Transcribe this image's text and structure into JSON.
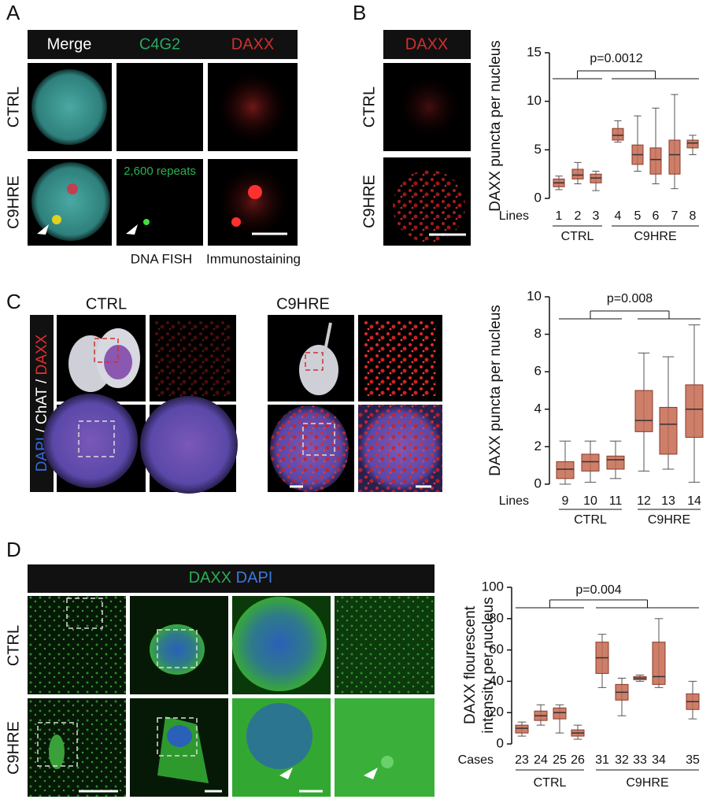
{
  "figure": {
    "panels": [
      "A",
      "B",
      "C",
      "D"
    ],
    "a": {
      "headers": [
        "Merge",
        "C4G2",
        "DAXX"
      ],
      "rows": [
        "CTRL",
        "C9HRE"
      ],
      "annotation": "2,600 repeats",
      "captions": [
        "DNA FISH",
        "Immunostaining"
      ]
    },
    "b": {
      "header": "DAXX",
      "rows": [
        "CTRL",
        "C9HRE"
      ]
    },
    "c": {
      "titles": [
        "CTRL",
        "C9HRE"
      ],
      "stain": [
        "DAPI",
        "/ ChAT /",
        "DAXX"
      ]
    },
    "d": {
      "header": [
        "DAXX",
        "DAPI"
      ],
      "rows": [
        "CTRL",
        "C9HRE"
      ]
    }
  },
  "chart_data": [
    {
      "type": "box",
      "ylabel": "DAXX puncta per nucleus",
      "xlabel": "Lines",
      "categories": [
        "1",
        "2",
        "3",
        "4",
        "5",
        "6",
        "7",
        "8"
      ],
      "groups": [
        "CTRL",
        "C9HRE"
      ],
      "annotation": "p=0.0012",
      "ylim": [
        0,
        15
      ],
      "yticks": [
        0,
        5,
        10,
        15
      ],
      "color": "#c46850",
      "boxes": [
        {
          "min": 0.9,
          "q1": 1.2,
          "median": 1.6,
          "q3": 2,
          "max": 2.3
        },
        {
          "min": 1.5,
          "q1": 2,
          "median": 2.4,
          "q3": 3,
          "max": 3.7
        },
        {
          "min": 0.8,
          "q1": 1.6,
          "median": 2.1,
          "q3": 2.5,
          "max": 2.8
        },
        {
          "min": 5.8,
          "q1": 6,
          "median": 6.5,
          "q3": 7.2,
          "max": 8
        },
        {
          "min": 2.8,
          "q1": 3.5,
          "median": 4.5,
          "q3": 5.5,
          "max": 8.5
        },
        {
          "min": 1.5,
          "q1": 2.5,
          "median": 4,
          "q3": 5.2,
          "max": 9.3
        },
        {
          "min": 1,
          "q1": 2.5,
          "median": 4.5,
          "q3": 6,
          "max": 10.7
        },
        {
          "min": 4.5,
          "q1": 5.2,
          "median": 5.7,
          "q3": 6,
          "max": 6.5
        }
      ]
    },
    {
      "type": "box",
      "ylabel": "DAXX puncta per nucleus",
      "xlabel": "Lines",
      "categories": [
        "9",
        "10",
        "11",
        "12",
        "13",
        "14"
      ],
      "groups": [
        "CTRL",
        "C9HRE"
      ],
      "annotation": "p=0.008",
      "ylim": [
        0,
        10
      ],
      "yticks": [
        0,
        2,
        4,
        6,
        8,
        10
      ],
      "color": "#c46850",
      "boxes": [
        {
          "min": 0,
          "q1": 0.3,
          "median": 0.8,
          "q3": 1.2,
          "max": 2.3
        },
        {
          "min": 0.1,
          "q1": 0.7,
          "median": 1.2,
          "q3": 1.6,
          "max": 2.3
        },
        {
          "min": 0.3,
          "q1": 0.8,
          "median": 1.3,
          "q3": 1.5,
          "max": 2.3
        },
        {
          "min": 0.7,
          "q1": 2.8,
          "median": 3.4,
          "q3": 5,
          "max": 7
        },
        {
          "min": 0.8,
          "q1": 1.6,
          "median": 3.2,
          "q3": 4.1,
          "max": 6.8
        },
        {
          "min": 0.1,
          "q1": 2.5,
          "median": 4,
          "q3": 5.3,
          "max": 8.5
        }
      ]
    },
    {
      "type": "box",
      "ylabel": [
        "DAXX flourescent",
        "intensity per nucleus"
      ],
      "xlabel": "Cases",
      "categories": [
        "23",
        "24",
        "25",
        "26",
        "31",
        "32",
        "33",
        "34",
        "35"
      ],
      "groups": [
        "CTRL",
        "C9HRE"
      ],
      "annotation": "p=0.004",
      "ylim": [
        0,
        100
      ],
      "yticks": [
        0,
        20,
        40,
        60,
        80,
        100
      ],
      "color": "#c46850",
      "boxes": [
        {
          "min": 5,
          "q1": 7,
          "median": 10,
          "q3": 12,
          "max": 14
        },
        {
          "min": 12,
          "q1": 15,
          "median": 18,
          "q3": 21,
          "max": 25
        },
        {
          "min": 7,
          "q1": 16,
          "median": 20,
          "q3": 23,
          "max": 25
        },
        {
          "min": 3,
          "q1": 5,
          "median": 7,
          "q3": 9,
          "max": 12
        },
        {
          "min": 36,
          "q1": 45,
          "median": 55,
          "q3": 65,
          "max": 70
        },
        {
          "min": 18,
          "q1": 28,
          "median": 33,
          "q3": 38,
          "max": 42
        },
        {
          "min": 40,
          "q1": 41,
          "median": 42,
          "q3": 43,
          "max": 44
        },
        {
          "min": 36,
          "q1": 38,
          "median": 43,
          "q3": 65,
          "max": 80
        },
        {
          "min": 16,
          "q1": 22,
          "median": 27,
          "q3": 32,
          "max": 40
        }
      ]
    }
  ]
}
